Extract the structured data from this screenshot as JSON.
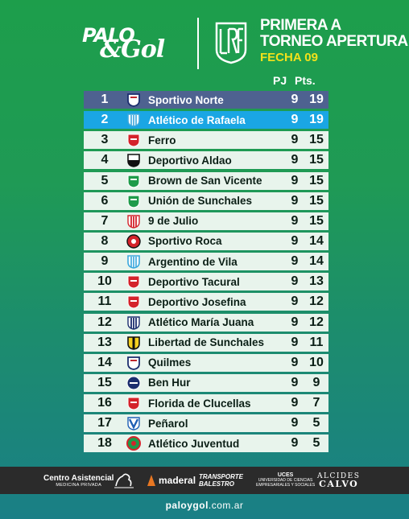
{
  "brand": {
    "line1": "PALO",
    "line2": "&Gol"
  },
  "league": {
    "title": "PRIMERA A",
    "tournament": "TORNEO APERTURA",
    "round": "FECHA 09",
    "logo": "LRF"
  },
  "headers": {
    "played": "PJ",
    "points": "Pts."
  },
  "standings": [
    {
      "pos": "1",
      "team": "Sportivo Norte",
      "pj": "9",
      "pts": "19",
      "crest": "shield-navy"
    },
    {
      "pos": "2",
      "team": "Atlético de Rafaela",
      "pj": "9",
      "pts": "19",
      "crest": "shield-lightblue"
    },
    {
      "pos": "3",
      "team": "Ferro",
      "pj": "9",
      "pts": "15",
      "crest": "shield-red"
    },
    {
      "pos": "4",
      "team": "Deportivo Aldao",
      "pj": "9",
      "pts": "15",
      "crest": "shield-black"
    },
    {
      "pos": "5",
      "team": "Brown de San Vicente",
      "pj": "9",
      "pts": "15",
      "crest": "shield-green"
    },
    {
      "pos": "6",
      "team": "Unión de Sunchales",
      "pj": "9",
      "pts": "15",
      "crest": "shield-green"
    },
    {
      "pos": "7",
      "team": "9 de Julio",
      "pj": "9",
      "pts": "15",
      "crest": "shield-red-stripes"
    },
    {
      "pos": "8",
      "team": "Sportivo Roca",
      "pj": "9",
      "pts": "14",
      "crest": "circle-red"
    },
    {
      "pos": "9",
      "team": "Argentino de Vila",
      "pj": "9",
      "pts": "14",
      "crest": "shield-lightblue"
    },
    {
      "pos": "10",
      "team": "Deportivo Tacural",
      "pj": "9",
      "pts": "13",
      "crest": "shield-red"
    },
    {
      "pos": "11",
      "team": "Deportivo Josefina",
      "pj": "9",
      "pts": "12",
      "crest": "shield-red"
    },
    {
      "pos": "12",
      "team": "Atlético María Juana",
      "pj": "9",
      "pts": "12",
      "crest": "shield-navy-stripes"
    },
    {
      "pos": "13",
      "team": "Libertad de Sunchales",
      "pj": "9",
      "pts": "11",
      "crest": "shield-yellow-black"
    },
    {
      "pos": "14",
      "team": "Quilmes",
      "pj": "9",
      "pts": "10",
      "crest": "shield-navy"
    },
    {
      "pos": "15",
      "team": "Ben Hur",
      "pj": "9",
      "pts": "9",
      "crest": "circle-navy"
    },
    {
      "pos": "16",
      "team": "Florida de Clucellas",
      "pj": "9",
      "pts": "7",
      "crest": "shield-red"
    },
    {
      "pos": "17",
      "team": "Peñarol",
      "pj": "9",
      "pts": "5",
      "crest": "shield-blue-v"
    },
    {
      "pos": "18",
      "team": "Atlético Juventud",
      "pj": "9",
      "pts": "5",
      "crest": "circle-green-red"
    }
  ],
  "sponsors": {
    "centro": {
      "name": "Centro Asistencial",
      "sub": "MEDICINA PRIVADA"
    },
    "maderal": {
      "name": "maderal"
    },
    "transporte": {
      "line1": "TRANSPORTE",
      "line2": "BALESTRO"
    },
    "uces": {
      "line1": "UCES",
      "line2": "UNIVERSIDAD DE CIENCIAS",
      "line3": "EMPRESARIALES Y SOCIALES"
    },
    "alcides": {
      "line1": "ALCIDES",
      "line2": "CALVO"
    }
  },
  "footer": {
    "url_bold": "paloygol",
    "url_rest": ".com.ar"
  },
  "colors": {
    "first_row": "#4e6290",
    "second_row": "#1aa6e4",
    "row": "#e8f4ec",
    "accent": "#f2e11b"
  }
}
